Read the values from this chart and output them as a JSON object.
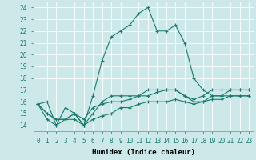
{
  "xlabel": "Humidex (Indice chaleur)",
  "bg_color": "#cce8e8",
  "grid_color": "#ffffff",
  "line_color": "#1a7a6e",
  "xlim": [
    -0.5,
    23.5
  ],
  "ylim": [
    13.5,
    24.5
  ],
  "yticks": [
    14,
    15,
    16,
    17,
    18,
    19,
    20,
    21,
    22,
    23,
    24
  ],
  "xticks": [
    0,
    1,
    2,
    3,
    4,
    5,
    6,
    7,
    8,
    9,
    10,
    11,
    12,
    13,
    14,
    15,
    16,
    17,
    18,
    19,
    20,
    21,
    22,
    23
  ],
  "series": [
    [
      15.8,
      16.0,
      14.0,
      15.5,
      15.0,
      14.0,
      16.5,
      19.5,
      21.5,
      22.0,
      22.5,
      23.5,
      24.0,
      22.0,
      22.0,
      22.5,
      21.0,
      18.0,
      17.0,
      16.5,
      16.5,
      17.0,
      17.0,
      17.0
    ],
    [
      15.8,
      15.0,
      14.5,
      14.5,
      15.0,
      14.0,
      15.0,
      16.0,
      16.5,
      16.5,
      16.5,
      16.5,
      17.0,
      17.0,
      17.0,
      17.0,
      16.5,
      16.0,
      16.0,
      16.5,
      16.5,
      16.5,
      16.5,
      16.5
    ],
    [
      15.8,
      15.0,
      14.5,
      14.5,
      15.0,
      14.5,
      15.5,
      15.8,
      16.0,
      16.0,
      16.2,
      16.5,
      16.5,
      16.8,
      17.0,
      17.0,
      16.5,
      16.2,
      16.5,
      17.0,
      17.0,
      17.0,
      17.0,
      17.0
    ],
    [
      15.8,
      14.5,
      14.0,
      14.5,
      14.5,
      14.0,
      14.5,
      14.8,
      15.0,
      15.5,
      15.5,
      15.8,
      16.0,
      16.0,
      16.0,
      16.2,
      16.0,
      15.8,
      16.0,
      16.2,
      16.2,
      16.5,
      16.5,
      16.5
    ]
  ],
  "tick_fontsize": 5.5,
  "xlabel_fontsize": 6.5,
  "linewidth": 0.8,
  "markersize": 3.0,
  "marker_ew": 0.8
}
